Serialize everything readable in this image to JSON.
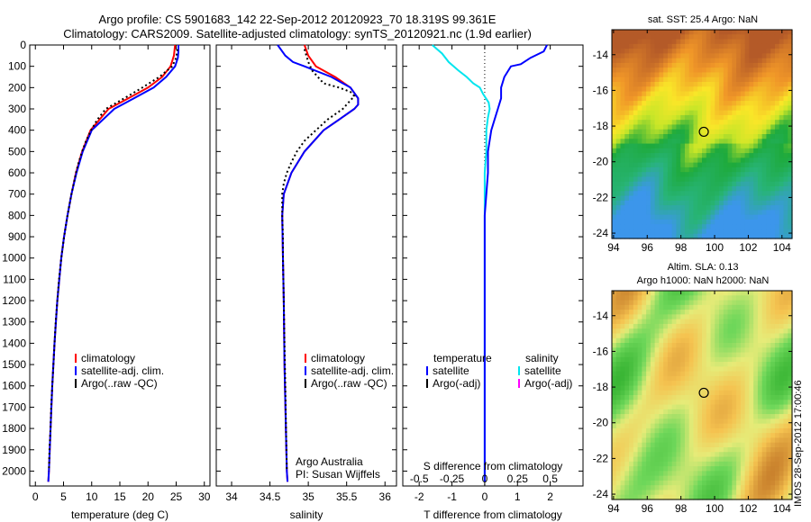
{
  "title": {
    "line1": "Argo profile: CS 5901683_142 22-Sep-2012 20120923_70 18.319S 99.361E",
    "line2": "Climatology: CARS2009. Satellite-adjusted climatology: synTS_20120921.nc (1.9d earlier)"
  },
  "map_sst": {
    "title": "sat. SST: 25.4 Argo: NaN",
    "xticks": [
      "94",
      "96",
      "98",
      "100",
      "102",
      "104"
    ],
    "yticks": [
      "-14",
      "-16",
      "-18",
      "-20",
      "-22",
      "-24"
    ],
    "float_lon": 99.36,
    "float_lat": -18.32
  },
  "map_sla": {
    "title1": "Altim. SLA: 0.13",
    "title2": "Argo h1000: NaN h2000: NaN",
    "xticks": [
      "94",
      "96",
      "98",
      "100",
      "102",
      "104"
    ],
    "yticks": [
      "-14",
      "-16",
      "-18",
      "-20",
      "-22",
      "-24"
    ],
    "float_lon": 99.36,
    "float_lat": -18.32
  },
  "stamp": "IMOS 28-Sep-2012 17:00:46",
  "colors": {
    "climatology": "#ff0000",
    "satellite": "#0000ff",
    "argo": "#000000",
    "s_satellite": "#00e5ee",
    "s_argo": "#ff00ff"
  },
  "chart_data": [
    {
      "type": "line",
      "xlabel": "temperature (deg C)",
      "ylabel": "",
      "xlim": [
        -1,
        31
      ],
      "ylim": [
        2070,
        0
      ],
      "xticks": [
        0,
        5,
        10,
        15,
        20,
        25,
        30
      ],
      "yticks": [
        0,
        100,
        200,
        300,
        400,
        500,
        600,
        700,
        800,
        900,
        1000,
        1100,
        1200,
        1300,
        1400,
        1500,
        1600,
        1700,
        1800,
        1900,
        2000
      ],
      "legend": [
        "climatology",
        "satellite-adj. clim.",
        "Argo(..raw -QC)"
      ],
      "series": [
        {
          "name": "climatology",
          "depth": [
            0,
            50,
            100,
            150,
            200,
            250,
            300,
            400,
            500,
            600,
            700,
            800,
            900,
            1000,
            1200,
            1400,
            1600,
            1800,
            2000,
            2050
          ],
          "values": [
            24.8,
            24.6,
            24.0,
            22.5,
            20.0,
            16.5,
            13.0,
            9.8,
            8.3,
            7.2,
            6.4,
            5.7,
            5.1,
            4.6,
            3.9,
            3.4,
            3.0,
            2.7,
            2.4,
            2.3
          ]
        },
        {
          "name": "satellite-adj. clim.",
          "depth": [
            0,
            30,
            60,
            100,
            150,
            200,
            250,
            300,
            400,
            500,
            600,
            700,
            800,
            900,
            1000,
            1200,
            1400,
            1600,
            1800,
            2000,
            2050
          ],
          "values": [
            25.4,
            25.4,
            25.3,
            24.8,
            23.2,
            21.0,
            17.5,
            14.0,
            10.0,
            8.4,
            7.3,
            6.4,
            5.7,
            5.1,
            4.6,
            3.9,
            3.4,
            3.0,
            2.7,
            2.4,
            2.3
          ]
        },
        {
          "name": "Argo(..raw -QC)",
          "depth": [
            20,
            60,
            100,
            150,
            200,
            250,
            300,
            350,
            400,
            450,
            500,
            550,
            600,
            650,
            700,
            800,
            900,
            1000,
            1100,
            1200,
            1300,
            1400,
            1500,
            1600,
            1700,
            1800,
            1900,
            2000
          ],
          "values": [
            25.2,
            25.0,
            24.3,
            22.0,
            19.0,
            15.8,
            12.5,
            11.0,
            9.9,
            9.0,
            8.3,
            7.7,
            7.2,
            6.8,
            6.4,
            5.7,
            5.1,
            4.6,
            4.2,
            3.9,
            3.6,
            3.4,
            3.2,
            3.0,
            2.8,
            2.7,
            2.5,
            2.4
          ]
        }
      ]
    },
    {
      "type": "line",
      "xlabel": "salinity",
      "ylabel": "",
      "xlim": [
        33.8,
        36.15
      ],
      "ylim": [
        2070,
        0
      ],
      "xticks": [
        34,
        34.5,
        35,
        35.5,
        36
      ],
      "legend": [
        "climatology",
        "satellite-adj. clim.",
        "Argo(..raw -QC)"
      ],
      "annotation": [
        "Argo Australia",
        "PI: Susan Wijffels"
      ],
      "series": [
        {
          "name": "climatology",
          "depth": [
            0,
            50,
            100,
            150,
            200,
            250,
            280,
            300,
            350,
            400,
            500,
            600,
            700,
            800,
            1000,
            1200,
            1500,
            2000,
            2050
          ],
          "values": [
            34.95,
            35.0,
            35.1,
            35.35,
            35.55,
            35.65,
            35.65,
            35.6,
            35.4,
            35.2,
            34.95,
            34.78,
            34.68,
            34.66,
            34.67,
            34.68,
            34.69,
            34.72,
            34.73
          ]
        },
        {
          "name": "satellite-adj. clim.",
          "depth": [
            0,
            50,
            80,
            100,
            150,
            200,
            250,
            280,
            300,
            350,
            400,
            500,
            600,
            700,
            800,
            1000,
            1200,
            1500,
            2000,
            2050
          ],
          "values": [
            34.6,
            34.7,
            34.8,
            34.95,
            35.3,
            35.55,
            35.65,
            35.65,
            35.6,
            35.4,
            35.2,
            34.95,
            34.78,
            34.68,
            34.66,
            34.67,
            34.68,
            34.69,
            34.72,
            34.73
          ]
        },
        {
          "name": "Argo(..raw -QC)",
          "depth": [
            20,
            80,
            120,
            160,
            180,
            200,
            220,
            240,
            260,
            300,
            350,
            400,
            450,
            500,
            550,
            600,
            650,
            700,
            800,
            900,
            1000,
            1200,
            1400,
            1600,
            1800,
            2000
          ],
          "values": [
            34.95,
            35.0,
            35.05,
            35.15,
            35.2,
            35.4,
            35.55,
            35.6,
            35.55,
            35.45,
            35.25,
            35.1,
            34.95,
            34.85,
            34.78,
            34.72,
            34.68,
            34.66,
            34.66,
            34.67,
            34.67,
            34.68,
            34.69,
            34.7,
            34.71,
            34.72
          ]
        }
      ]
    },
    {
      "type": "line",
      "xlabel": "T difference from climatology",
      "x2label": "S difference from climatology",
      "xlim": [
        -2.5,
        3.0
      ],
      "ylim": [
        2070,
        0
      ],
      "xticks": [
        -2,
        -1,
        0,
        1,
        2
      ],
      "x2ticks": [
        "-0.5",
        "-0.25",
        "0",
        "0.25",
        "0.5"
      ],
      "legend_temperature": [
        "temperature",
        "satellite",
        "Argo(-adj)"
      ],
      "legend_salinity": [
        "salinity",
        "satellite",
        "Argo(-adj)"
      ],
      "series": [
        {
          "name": "satellite",
          "quantity": "temperature",
          "depth": [
            0,
            30,
            60,
            90,
            100,
            150,
            200,
            250,
            300,
            350,
            400,
            500,
            600,
            700,
            800,
            1000,
            1200,
            1500,
            2050
          ],
          "values": [
            1.9,
            1.8,
            1.4,
            1.1,
            0.8,
            0.6,
            0.5,
            0.5,
            0.4,
            0.3,
            0.2,
            0.1,
            0.1,
            0.05,
            0,
            0,
            0,
            0,
            0
          ]
        },
        {
          "name": "satellite",
          "quantity": "salinity",
          "depth": [
            0,
            40,
            80,
            120,
            150,
            180,
            200,
            230,
            270,
            300,
            340,
            400,
            500,
            600,
            700,
            800,
            1000,
            1500,
            2050
          ],
          "values": [
            -1.6,
            -1.3,
            -1.1,
            -0.8,
            -0.55,
            -0.35,
            -0.15,
            -0.05,
            0.12,
            0.15,
            0.1,
            0.05,
            0.05,
            0.0,
            0.0,
            0,
            0,
            0,
            0
          ]
        }
      ]
    }
  ],
  "maps_xlabel_fmt": "deg",
  "legend_headers": {
    "temperature": "temperature",
    "salinity": "salinity"
  }
}
